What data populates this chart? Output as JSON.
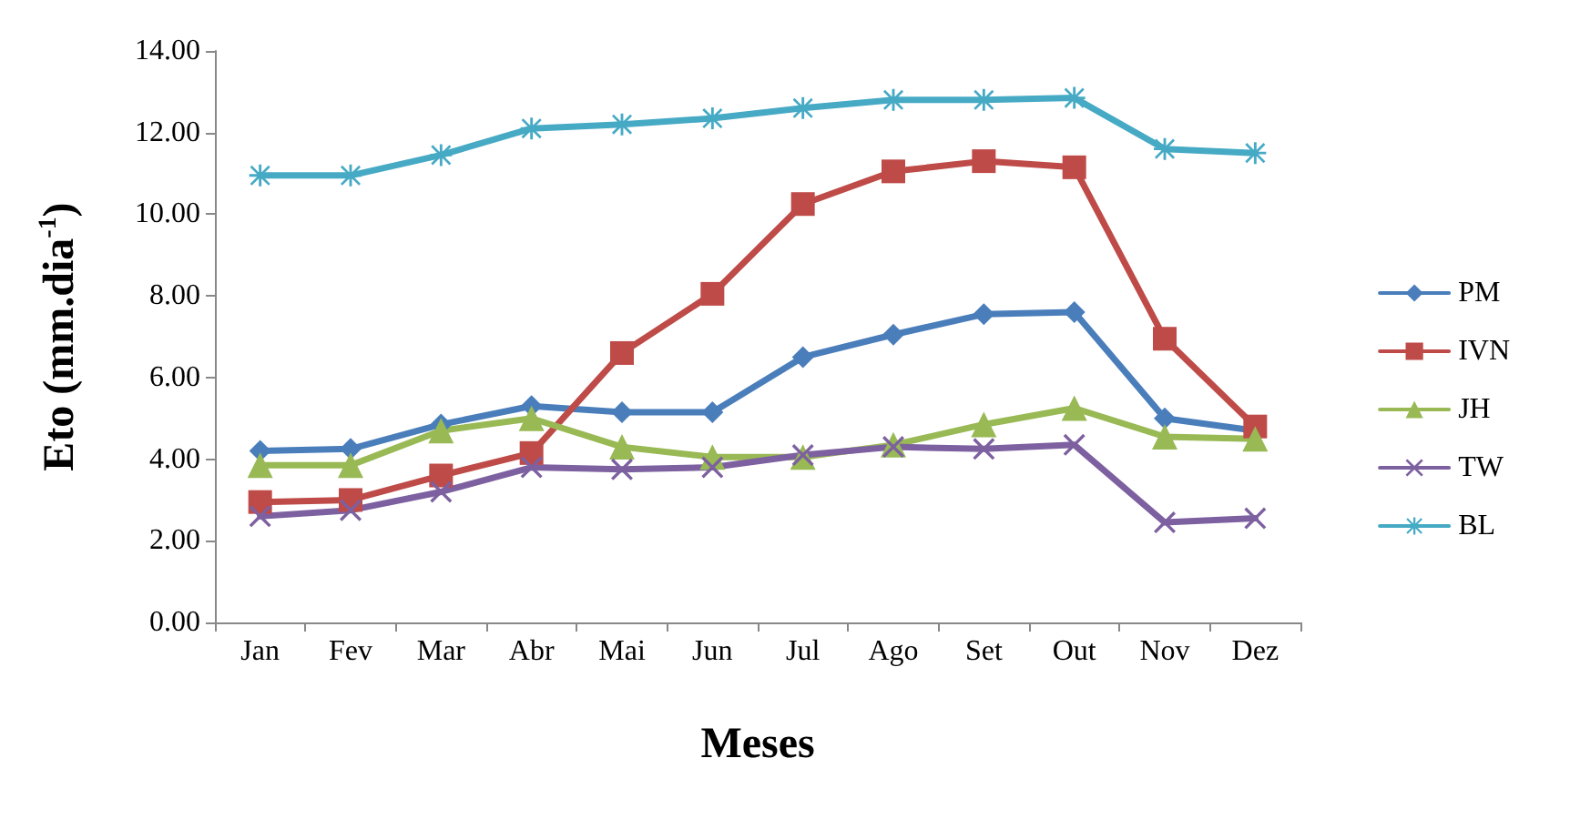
{
  "chart_data": {
    "type": "line",
    "xlabel": "Meses",
    "ylabel": "Eto (mm.dia$^{-1}$)",
    "categories": [
      "Jan",
      "Fev",
      "Mar",
      "Abr",
      "Mai",
      "Jun",
      "Jul",
      "Ago",
      "Set",
      "Out",
      "Nov",
      "Dez"
    ],
    "ylim": [
      0,
      14
    ],
    "yticks": [
      {
        "value": 0,
        "label": "0.00"
      },
      {
        "value": 2,
        "label": "2.00"
      },
      {
        "value": 4,
        "label": "4.00"
      },
      {
        "value": 6,
        "label": "6.00"
      },
      {
        "value": 8,
        "label": "8.00"
      },
      {
        "value": 10,
        "label": "10.00"
      },
      {
        "value": 12,
        "label": "12.00"
      },
      {
        "value": 14,
        "label": "14.00"
      }
    ],
    "grid": false,
    "legend": "right",
    "line_style": "solid",
    "series": [
      {
        "name": "PM",
        "color": "#4a7ebb",
        "marker": "diamond",
        "values": [
          4.2,
          4.25,
          4.85,
          5.3,
          5.15,
          5.15,
          6.5,
          7.05,
          7.55,
          7.6,
          5.0,
          4.7
        ]
      },
      {
        "name": "IVN",
        "color": "#be4b48",
        "marker": "square",
        "values": [
          2.95,
          3.0,
          3.6,
          4.15,
          6.6,
          8.05,
          10.25,
          11.05,
          11.3,
          11.15,
          6.95,
          4.8
        ]
      },
      {
        "name": "JH",
        "color": "#98b954",
        "marker": "triangle",
        "values": [
          3.85,
          3.85,
          4.7,
          5.0,
          4.3,
          4.05,
          4.05,
          4.35,
          4.85,
          5.25,
          4.55,
          4.5
        ]
      },
      {
        "name": "TW",
        "color": "#7d60a0",
        "marker": "cross",
        "values": [
          2.6,
          2.75,
          3.2,
          3.8,
          3.75,
          3.8,
          4.1,
          4.3,
          4.25,
          4.35,
          2.45,
          2.55
        ]
      },
      {
        "name": "BL",
        "color": "#46aac5",
        "marker": "star",
        "values": [
          10.95,
          10.95,
          11.45,
          12.1,
          12.2,
          12.35,
          12.6,
          12.8,
          12.8,
          12.85,
          11.6,
          11.5
        ]
      }
    ]
  }
}
